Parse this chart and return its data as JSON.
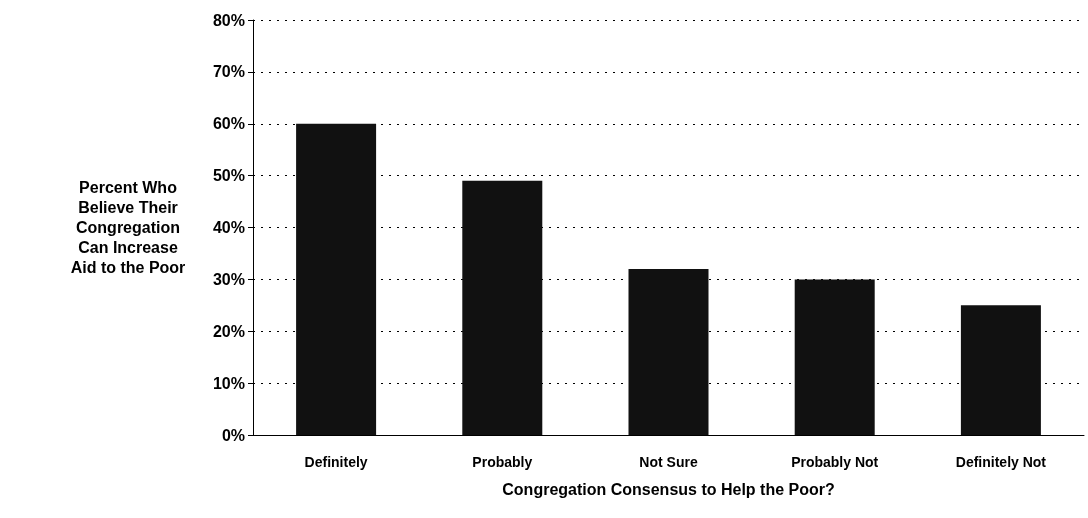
{
  "chart_data": {
    "type": "bar",
    "xlabel": "Congregation Consensus to Help the Poor?",
    "ylabel": "Percent Who\nBelieve Their\nCongregation\nCan Increase\nAid to the Poor",
    "categories": [
      "Definitely",
      "Probably",
      "Not Sure",
      "Probably Not",
      "Definitely Not"
    ],
    "values": [
      60,
      49,
      32,
      30,
      25
    ],
    "color": "#111111",
    "ylim": [
      0,
      80
    ],
    "yticks": [
      {
        "value": 0,
        "label": "0%"
      },
      {
        "value": 10,
        "label": "10%"
      },
      {
        "value": 20,
        "label": "20%"
      },
      {
        "value": 30,
        "label": "30%"
      },
      {
        "value": 40,
        "label": "40%"
      },
      {
        "value": 50,
        "label": "50%"
      },
      {
        "value": 60,
        "label": "60%"
      },
      {
        "value": 70,
        "label": "70%"
      },
      {
        "value": 80,
        "label": "80%"
      }
    ],
    "grid": "y"
  }
}
